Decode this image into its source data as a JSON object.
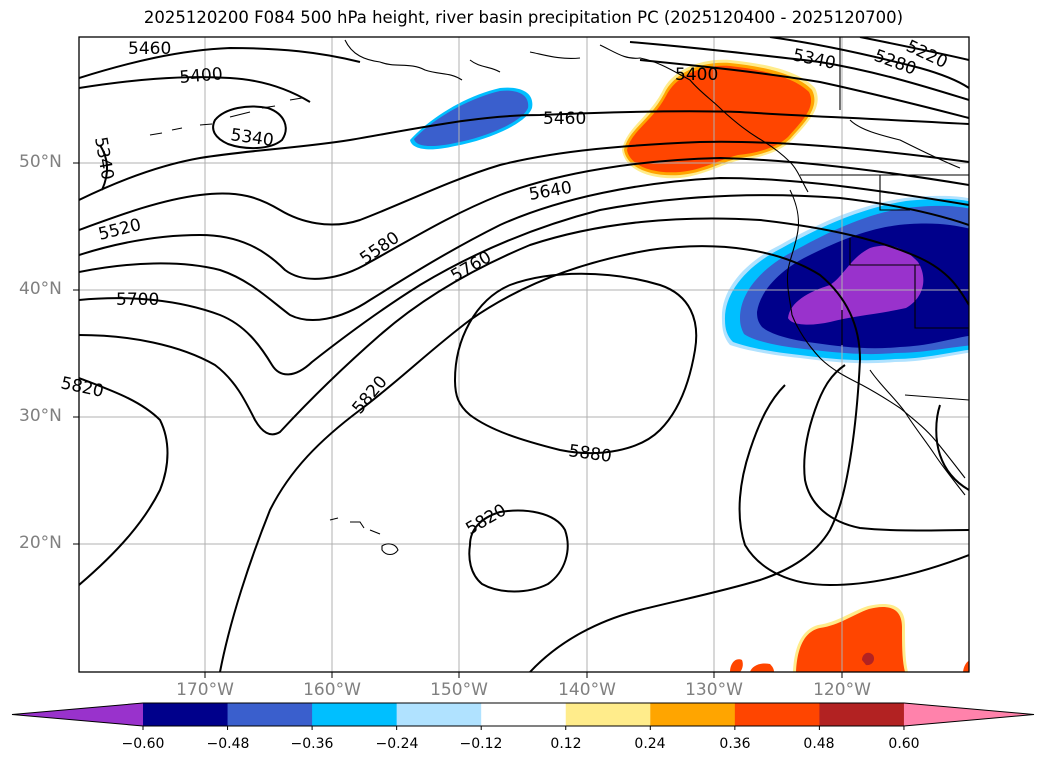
{
  "title": "2025120200 F084 500 hPa height, river basin precipitation PC (2025120400 - 2025120700)",
  "map": {
    "lat_labels": [
      "50°N",
      "40°N",
      "30°N",
      "20°N"
    ],
    "lon_labels": [
      "170°W",
      "160°W",
      "150°W",
      "140°W",
      "130°W",
      "120°W"
    ],
    "contour_labels": [
      "5460",
      "5400",
      "5340",
      "5340",
      "5460",
      "5340",
      "5280",
      "5220",
      "5640",
      "5520",
      "5580",
      "5760",
      "5700",
      "5820",
      "5820",
      "5880",
      "5820",
      "5400"
    ]
  },
  "colorbar": {
    "ticks": [
      "−0.60",
      "−0.48",
      "−0.36",
      "−0.24",
      "−0.12",
      "0.12",
      "0.24",
      "0.36",
      "0.48",
      "0.60"
    ],
    "colors": [
      "#9932cc",
      "#00008b",
      "#3a5fcd",
      "#00bfff",
      "#b0e2ff",
      "#ffffff",
      "#ffec8b",
      "#ffa500",
      "#ff4500",
      "#b22222",
      "#ff82ab"
    ]
  },
  "colors": {
    "negative_strong": "#00008b",
    "negative_mid": "#3a5fcd",
    "negative_light": "#00bfff",
    "negative_extreme": "#9932cc",
    "positive_strong": "#ff4500",
    "positive_mid": "#ffa500",
    "positive_light": "#ffec8b",
    "positive_extreme": "#b22222"
  }
}
